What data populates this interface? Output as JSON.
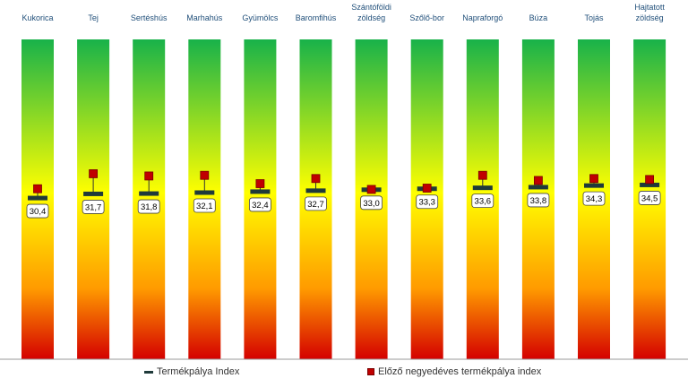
{
  "chart_data": {
    "type": "bullet",
    "categories": [
      "Kukorica",
      "Tej",
      "Sertéshús",
      "Marhahús",
      "Gyümölcs",
      "Baromfihús",
      "Szántóföldi zöldség",
      "Szőlő-bor",
      "Napraforgó",
      "Búza",
      "Tojás",
      "Hajtatott zöldség"
    ],
    "series": [
      {
        "name": "Termékpálya Index",
        "values": [
          30.4,
          31.7,
          31.8,
          32.1,
          32.4,
          32.7,
          33.0,
          33.3,
          33.6,
          33.8,
          34.3,
          34.5
        ]
      },
      {
        "name": "Előző negyedéves termékpálya index",
        "values": [
          33.3,
          38.0,
          37.3,
          37.5,
          34.9,
          36.5,
          33.1,
          33.5,
          37.5,
          35.9,
          36.5,
          36.2
        ]
      }
    ],
    "value_labels": [
      "30,4",
      "31,7",
      "31,8",
      "32,1",
      "32,4",
      "32,7",
      "33,0",
      "33,3",
      "33,6",
      "33,8",
      "34,3",
      "34,5"
    ],
    "ylim": [
      -20,
      80
    ],
    "colors": {
      "gradient_top": "#18b24a",
      "gradient_mid": "#ffff00",
      "gradient_bottom": "#d40000",
      "index_marker": "#1f3a3a",
      "previous_marker": "#c00000"
    },
    "legend_position": "bottom"
  },
  "legend": {
    "current_label": "Termékpálya Index",
    "previous_label": "Előző negyedéves termékpálya index"
  }
}
